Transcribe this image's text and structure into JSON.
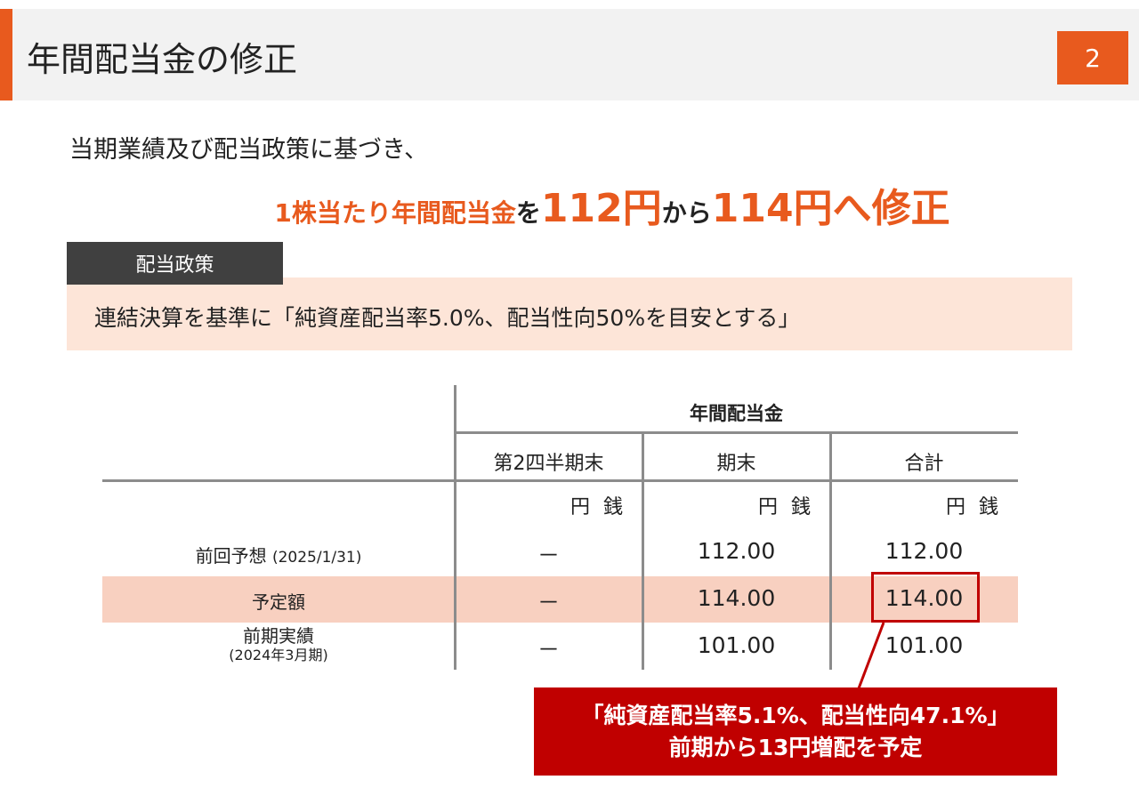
{
  "header": {
    "title": "年間配当金の修正",
    "page_number": "2"
  },
  "intro": {
    "line1": "当期業績及び配当政策に基づき、",
    "line2": {
      "a": "1株当たり年間配当金",
      "b": "を",
      "c": "112円",
      "d": "から",
      "e": "114円へ修正"
    }
  },
  "policy": {
    "label": "配当政策",
    "text": "連結決算を基準に「純資産配当率5.0%、配当性向50%を目安とする」"
  },
  "table": {
    "group_header": "年間配当金",
    "columns": [
      "第2四半期末",
      "期末",
      "合計"
    ],
    "unit": "円 銭",
    "rows": [
      {
        "label": "前回予想",
        "sub": "(2025/1/31)",
        "values": [
          "－",
          "112.00",
          "112.00"
        ]
      },
      {
        "label": "予定額",
        "sub": "",
        "values": [
          "－",
          "114.00",
          "114.00"
        ]
      },
      {
        "label": "前期実績",
        "sub": "(2024年3月期)",
        "values": [
          "－",
          "101.00",
          "101.00"
        ]
      }
    ]
  },
  "callout": {
    "line1": "「純資産配当率5.1%、配当性向47.1%」",
    "line2": "前期から13円増配を予定"
  },
  "colors": {
    "accent": "#e85a1e",
    "callout": "#c00000",
    "highlight_row": "#f8d0c0"
  }
}
